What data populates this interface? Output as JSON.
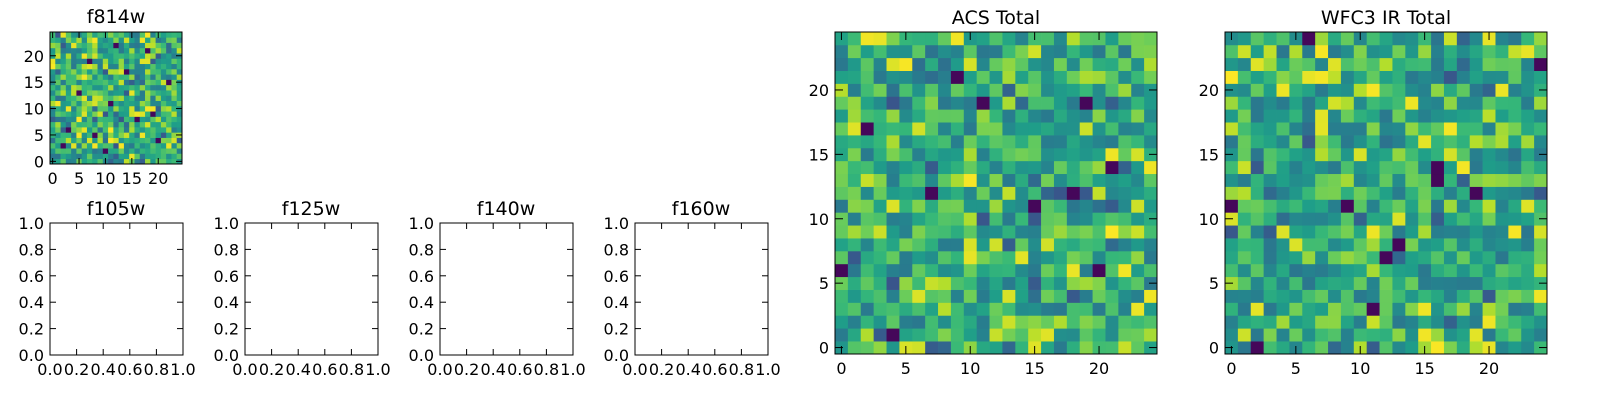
{
  "colors": {
    "background": "#ffffff",
    "axes": "#000000",
    "colormap": "viridis"
  },
  "chart_data": [
    {
      "id": "f814w",
      "type": "heatmap",
      "title": "f814w",
      "grid_size": 25,
      "xlim": [
        -0.5,
        24.5
      ],
      "ylim": [
        -0.5,
        24.5
      ],
      "xticks": [
        0,
        5,
        10,
        15,
        20
      ],
      "xtick_labels": [
        "0",
        "5",
        "10",
        "15",
        "20"
      ],
      "yticks": [
        0,
        5,
        10,
        15,
        20
      ],
      "ytick_labels": [
        "0",
        "5",
        "10",
        "15",
        "20"
      ],
      "seed": 11,
      "cold_pixels": [
        [
          2,
          3
        ],
        [
          20,
          4
        ],
        [
          8,
          5
        ],
        [
          3,
          6
        ],
        [
          16,
          8
        ],
        [
          19,
          9
        ],
        [
          11,
          11
        ],
        [
          5,
          13
        ],
        [
          22,
          15
        ],
        [
          14,
          17
        ],
        [
          7,
          19
        ],
        [
          18,
          21
        ],
        [
          12,
          22
        ],
        [
          10,
          2
        ]
      ]
    },
    {
      "id": "f105w",
      "type": "empty",
      "title": "f105w",
      "xlim": [
        0,
        1
      ],
      "ylim": [
        0,
        1
      ],
      "xticks": [
        0,
        0.2,
        0.4,
        0.6,
        0.8,
        1.0
      ],
      "xtick_labels": [
        "0.0",
        "0.2",
        "0.4",
        "0.6",
        "0.8",
        "1.0"
      ],
      "yticks": [
        0,
        0.2,
        0.4,
        0.6,
        0.8,
        1.0
      ],
      "ytick_labels": [
        "0.0",
        "0.2",
        "0.4",
        "0.6",
        "0.8",
        "1.0"
      ]
    },
    {
      "id": "f125w",
      "type": "empty",
      "title": "f125w",
      "xlim": [
        0,
        1
      ],
      "ylim": [
        0,
        1
      ],
      "xticks": [
        0,
        0.2,
        0.4,
        0.6,
        0.8,
        1.0
      ],
      "xtick_labels": [
        "0.0",
        "0.2",
        "0.4",
        "0.6",
        "0.8",
        "1.0"
      ],
      "yticks": [
        0,
        0.2,
        0.4,
        0.6,
        0.8,
        1.0
      ],
      "ytick_labels": [
        "0.0",
        "0.2",
        "0.4",
        "0.6",
        "0.8",
        "1.0"
      ]
    },
    {
      "id": "f140w",
      "type": "empty",
      "title": "f140w",
      "xlim": [
        0,
        1
      ],
      "ylim": [
        0,
        1
      ],
      "xticks": [
        0,
        0.2,
        0.4,
        0.6,
        0.8,
        1.0
      ],
      "xtick_labels": [
        "0.0",
        "0.2",
        "0.4",
        "0.6",
        "0.8",
        "1.0"
      ],
      "yticks": [
        0,
        0.2,
        0.4,
        0.6,
        0.8,
        1.0
      ],
      "ytick_labels": [
        "0.0",
        "0.2",
        "0.4",
        "0.6",
        "0.8",
        "1.0"
      ]
    },
    {
      "id": "f160w",
      "type": "empty",
      "title": "f160w",
      "xlim": [
        0,
        1
      ],
      "ylim": [
        0,
        1
      ],
      "xticks": [
        0,
        0.2,
        0.4,
        0.6,
        0.8,
        1.0
      ],
      "xtick_labels": [
        "0.0",
        "0.2",
        "0.4",
        "0.6",
        "0.8",
        "1.0"
      ],
      "yticks": [
        0,
        0.2,
        0.4,
        0.6,
        0.8,
        1.0
      ],
      "ytick_labels": [
        "0.0",
        "0.2",
        "0.4",
        "0.6",
        "0.8",
        "1.0"
      ]
    },
    {
      "id": "acs_total",
      "type": "heatmap",
      "title": "ACS Total",
      "grid_size": 25,
      "xlim": [
        -0.5,
        24.5
      ],
      "ylim": [
        -0.5,
        24.5
      ],
      "xticks": [
        0,
        5,
        10,
        15,
        20
      ],
      "xtick_labels": [
        "0",
        "5",
        "10",
        "15",
        "20"
      ],
      "yticks": [
        0,
        5,
        10,
        15,
        20
      ],
      "ytick_labels": [
        "0",
        "5",
        "10",
        "15",
        "20"
      ],
      "seed": 29,
      "cold_pixels": [
        [
          4,
          1
        ],
        [
          20,
          6
        ],
        [
          15,
          11
        ],
        [
          7,
          12
        ],
        [
          21,
          14
        ],
        [
          9,
          21
        ],
        [
          11,
          19
        ],
        [
          19,
          19
        ],
        [
          18,
          12
        ],
        [
          2,
          17
        ],
        [
          0,
          6
        ]
      ]
    },
    {
      "id": "wfc3_ir_total",
      "type": "heatmap",
      "title": "WFC3 IR Total",
      "grid_size": 25,
      "xlim": [
        -0.5,
        24.5
      ],
      "ylim": [
        -0.5,
        24.5
      ],
      "xticks": [
        0,
        5,
        10,
        15,
        20
      ],
      "xtick_labels": [
        "0",
        "5",
        "10",
        "15",
        "20"
      ],
      "yticks": [
        0,
        5,
        10,
        15,
        20
      ],
      "ytick_labels": [
        "0",
        "5",
        "10",
        "15",
        "20"
      ],
      "seed": 47,
      "cold_pixels": [
        [
          6,
          24
        ],
        [
          24,
          22
        ],
        [
          2,
          0
        ],
        [
          11,
          3
        ],
        [
          13,
          8
        ],
        [
          9,
          11
        ],
        [
          16,
          13
        ],
        [
          16,
          14
        ],
        [
          0,
          11
        ],
        [
          12,
          7
        ],
        [
          19,
          12
        ]
      ]
    }
  ]
}
